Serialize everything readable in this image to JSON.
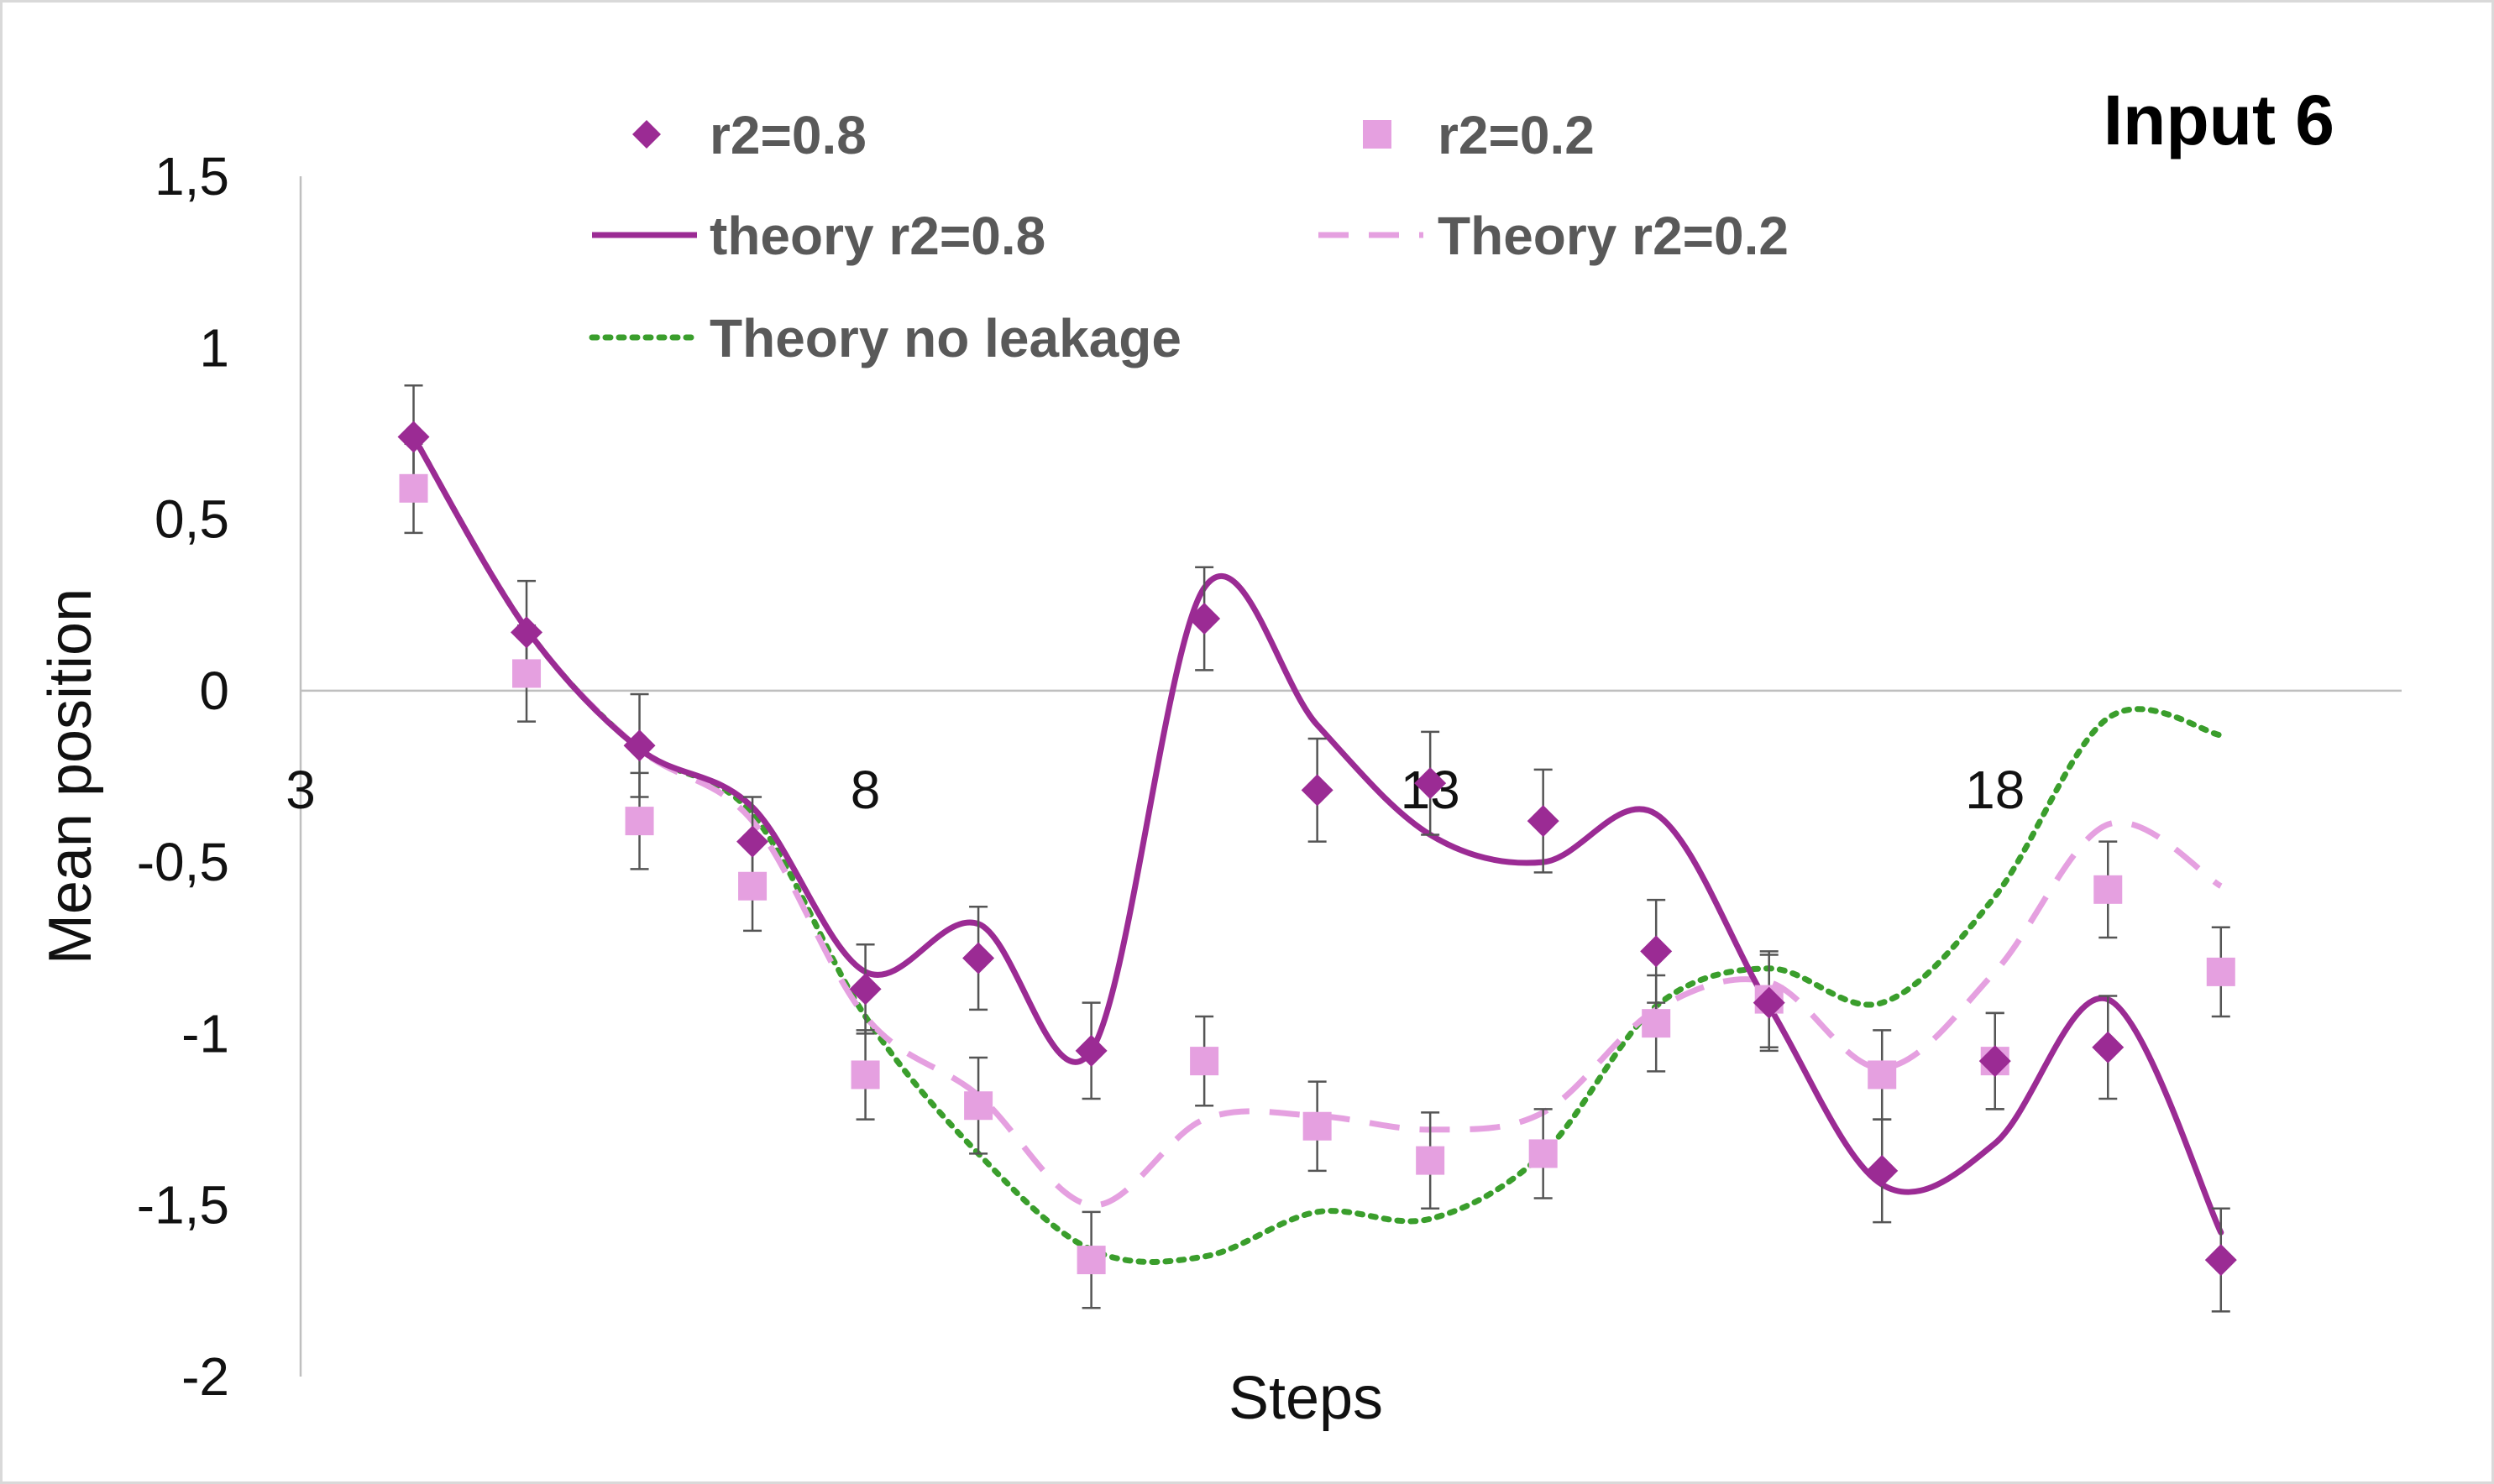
{
  "chart_data": {
    "type": "scatter",
    "title": "Input 6",
    "xlabel": "Steps",
    "ylabel": "Mean position",
    "xlim": [
      3,
      21.6
    ],
    "ylim": [
      -2,
      1.5
    ],
    "x_ticks": [
      "3",
      "8",
      "13",
      "18"
    ],
    "y_ticks": [
      "1,5",
      "1",
      "0,5",
      "0",
      "-0,5",
      "-1",
      "-1,5",
      "-2"
    ],
    "grid": false,
    "legend_position": "top",
    "series": [
      {
        "name": "r2=0.8",
        "kind": "markers",
        "marker": "diamond",
        "color": "#9b2b94",
        "x": [
          4,
          5,
          6,
          7,
          8,
          9,
          10,
          11,
          12,
          13,
          14,
          15,
          16,
          17,
          18,
          19,
          20
        ],
        "y": [
          0.74,
          0.17,
          -0.16,
          -0.44,
          -0.87,
          -0.78,
          -1.05,
          0.21,
          -0.29,
          -0.27,
          -0.38,
          -0.76,
          -0.91,
          -1.4,
          -1.08,
          -1.04,
          -1.66
        ],
        "error": [
          0.15,
          0.15,
          0.15,
          0.13,
          0.13,
          0.15,
          0.14,
          0.15,
          0.15,
          0.15,
          0.15,
          0.15,
          0.14,
          0.15,
          0.14,
          0.15,
          0.15
        ]
      },
      {
        "name": "r2=0.2",
        "kind": "markers",
        "marker": "square",
        "color": "#e5a0e0",
        "x": [
          4,
          5,
          6,
          7,
          8,
          9,
          10,
          11,
          12,
          13,
          14,
          15,
          16,
          17,
          18,
          19,
          20
        ],
        "y": [
          0.59,
          0.05,
          -0.38,
          -0.57,
          -1.12,
          -1.21,
          -1.66,
          -1.08,
          -1.27,
          -1.37,
          -1.35,
          -0.97,
          -0.9,
          -1.12,
          -1.08,
          -0.58,
          -0.82
        ],
        "error": [
          0.13,
          0.14,
          0.14,
          0.13,
          0.13,
          0.14,
          0.14,
          0.13,
          0.13,
          0.14,
          0.13,
          0.14,
          0.14,
          0.13,
          0.14,
          0.14,
          0.13
        ]
      },
      {
        "name": "theory r2=0.8",
        "kind": "line",
        "style": "solid",
        "color": "#9b2b94",
        "x": [
          4,
          5,
          6,
          7,
          8,
          9,
          10,
          11,
          12,
          13,
          14,
          15,
          16,
          17,
          18,
          19,
          20
        ],
        "y": [
          0.74,
          0.18,
          -0.17,
          -0.34,
          -0.82,
          -0.68,
          -1.05,
          0.3,
          -0.1,
          -0.42,
          -0.5,
          -0.36,
          -0.92,
          -1.44,
          -1.32,
          -0.9,
          -1.58
        ]
      },
      {
        "name": "Theory r2=0.2",
        "kind": "line",
        "style": "dashed",
        "color": "#e5a0e0",
        "x": [
          4,
          5,
          6,
          7,
          8,
          9,
          10,
          11,
          12,
          13,
          14,
          15,
          16,
          17,
          18,
          19,
          20
        ],
        "y": [
          0.74,
          0.18,
          -0.17,
          -0.38,
          -0.95,
          -1.18,
          -1.5,
          -1.25,
          -1.24,
          -1.28,
          -1.23,
          -0.93,
          -0.85,
          -1.1,
          -0.82,
          -0.39,
          -0.57
        ]
      },
      {
        "name": "Theory no leakage",
        "kind": "line",
        "style": "dotted",
        "color": "#3a9e2c",
        "x": [
          4,
          5,
          6,
          7,
          8,
          9,
          10,
          11,
          12,
          13,
          14,
          15,
          16,
          17,
          18,
          19,
          20
        ],
        "y": [
          0.74,
          0.18,
          -0.17,
          -0.36,
          -0.95,
          -1.35,
          -1.63,
          -1.65,
          -1.52,
          -1.54,
          -1.35,
          -0.92,
          -0.81,
          -0.91,
          -0.6,
          -0.08,
          -0.13
        ]
      }
    ]
  }
}
